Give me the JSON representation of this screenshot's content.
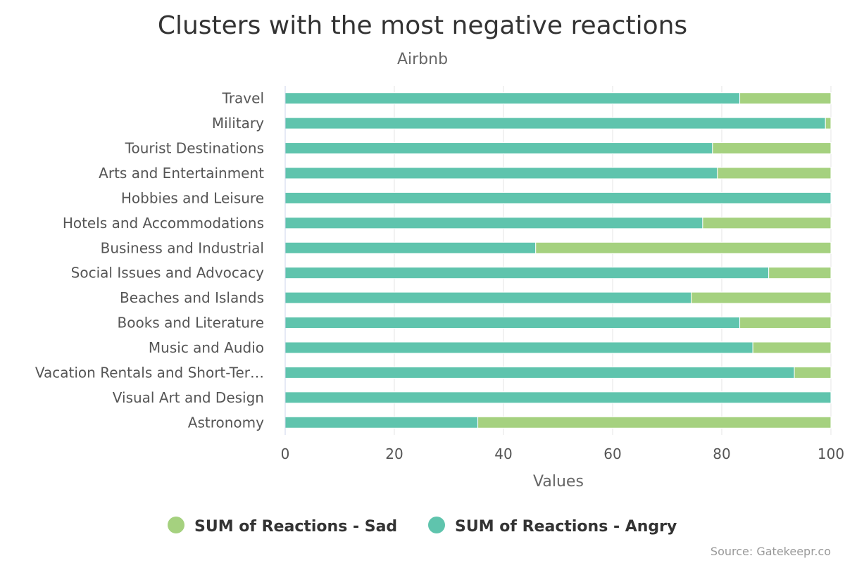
{
  "chart_data": {
    "type": "bar",
    "orientation": "horizontal",
    "stacking": "percent",
    "title": "Clusters with the most negative reactions",
    "subtitle": "Airbnb",
    "xlabel": "Values",
    "ylabel": "",
    "xlim": [
      0,
      100
    ],
    "xticks": [
      "0",
      "20",
      "40",
      "60",
      "80",
      "100"
    ],
    "grid": true,
    "legend_position": "bottom",
    "categories": [
      "Travel",
      "Military",
      "Tourist Destinations",
      "Arts and Entertainment",
      "Hobbies and Leisure",
      "Hotels and Accommodations",
      "Business and Industrial",
      "Social Issues and Advocacy",
      "Beaches and Islands",
      "Books and Literature",
      "Music and Audio",
      "Vacation Rentals and Short-Ter…",
      "Visual Art and Design",
      "Astronomy"
    ],
    "series": [
      {
        "name": "SUM of Reactions - Sad",
        "color": "#a5d17f",
        "values": [
          16.7,
          1.0,
          21.7,
          20.8,
          0,
          23.5,
          54.1,
          11.4,
          25.6,
          16.7,
          14.3,
          6.7,
          0,
          64.7
        ]
      },
      {
        "name": "SUM of Reactions - Angry",
        "color": "#5fc4ad",
        "values": [
          83.3,
          99.0,
          78.3,
          79.2,
          100,
          76.5,
          45.9,
          88.6,
          74.4,
          83.3,
          85.7,
          93.3,
          100,
          35.3
        ]
      }
    ],
    "credits": "Source: Gatekeepr.co",
    "colors": {
      "grid": "#e6e6e6",
      "axis": "#ccd6eb",
      "title": "#333333",
      "label": "#555555"
    }
  }
}
